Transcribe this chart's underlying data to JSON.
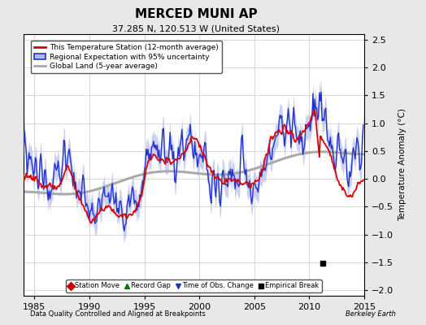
{
  "title": "MERCED MUNI AP",
  "subtitle": "37.285 N, 120.513 W (United States)",
  "xlabel_left": "Data Quality Controlled and Aligned at Breakpoints",
  "xlabel_right": "Berkeley Earth",
  "ylabel": "Temperature Anomaly (°C)",
  "xlim": [
    1984,
    2015
  ],
  "ylim": [
    -2.1,
    2.6
  ],
  "yticks": [
    -2,
    -1.5,
    -1,
    -0.5,
    0,
    0.5,
    1,
    1.5,
    2,
    2.5
  ],
  "xticks": [
    1985,
    1990,
    1995,
    2000,
    2005,
    2010,
    2015
  ],
  "background_color": "#e8e8e8",
  "plot_bg_color": "#ffffff",
  "grid_color": "#c8c8c8",
  "station_color": "#dd0000",
  "regional_color": "#2233cc",
  "regional_fill_color": "#b0b8ee",
  "global_color": "#aaaaaa",
  "legend_station": "This Temperature Station (12-month average)",
  "legend_regional": "Regional Expectation with 95% uncertainty",
  "legend_global": "Global Land (5-year average)",
  "empirical_break_x": 2011.2,
  "empirical_break_y": -1.52,
  "seed": 137
}
